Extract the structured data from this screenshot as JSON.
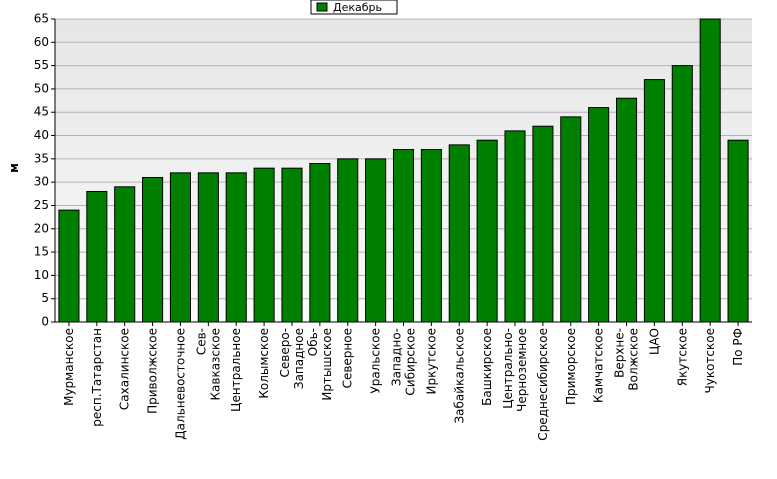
{
  "chart_data": {
    "type": "bar",
    "series": [
      {
        "name": "Декабрь",
        "color": "#008000",
        "values": [
          24,
          28,
          29,
          31,
          32,
          32,
          32,
          33,
          33,
          34,
          35,
          35,
          37,
          37,
          38,
          39,
          41,
          42,
          44,
          46,
          48,
          52,
          55,
          65,
          39
        ]
      }
    ],
    "categories": [
      "Мурманское",
      "респ.Татарстан",
      "Сахалинское",
      "Приволжское",
      "Дальневосточное",
      "Сев-\nКавказское",
      "Центральное",
      "Колымское",
      "Северо-\nЗападное",
      "Обь-\nИртышское",
      "Северное",
      "Уральское",
      "Западно-\nСибирское",
      "Иркутское",
      "Забайкальское",
      "Башкирское",
      "Центрально-\nЧерноземное",
      "Среднесибирское",
      "Приморское",
      "Камчатское",
      "Верхне-\nВолжское",
      "ЦАО",
      "Якутское",
      "Чукотское",
      "По РФ"
    ],
    "y_label": "м",
    "ylim": [
      0,
      65
    ],
    "yticks": [
      0,
      5,
      10,
      15,
      20,
      25,
      30,
      35,
      40,
      45,
      50,
      55,
      60,
      65
    ],
    "grid": true,
    "legend": "top"
  }
}
